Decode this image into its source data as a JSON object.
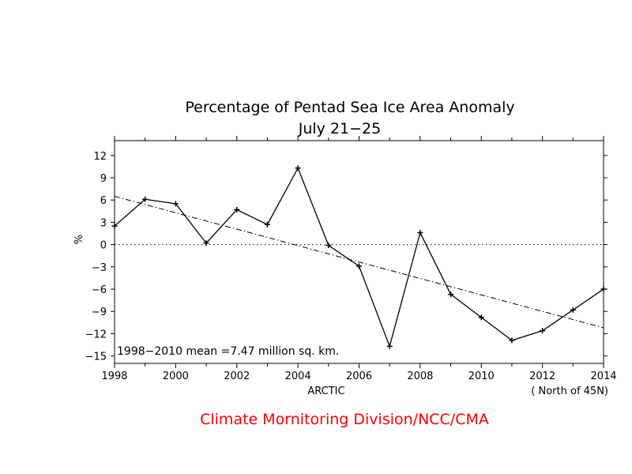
{
  "chart_data": {
    "type": "line",
    "title": "Percentage of Pentad Sea Ice Area Anomaly",
    "subtitle": "July 21−25",
    "ylabel": "%",
    "xlabel": "ARCTIC",
    "region_note": "( North of 45N)",
    "mean_note": "1998−2010  mean =7.47 million sq. km.",
    "credit": "Climate Mornitoring Division/NCC/CMA",
    "credit_color": "#ff0000",
    "xlim": [
      1998,
      2014
    ],
    "ylim": [
      -16,
      14
    ],
    "x_ticks": [
      1998,
      2000,
      2002,
      2004,
      2006,
      2008,
      2010,
      2012,
      2014
    ],
    "y_ticks": [
      12,
      9,
      6,
      3,
      0,
      -3,
      -6,
      -9,
      -12,
      -15
    ],
    "y_tick_labels": [
      "12",
      "9",
      "6",
      "3",
      "0",
      "−3",
      "−6",
      "−9",
      "−12",
      "−15"
    ],
    "zero_line": true,
    "series": [
      {
        "style": "solid-with-plus-markers",
        "x": [
          1998,
          1999,
          2000,
          2001,
          2002,
          2003,
          2004,
          2005,
          2006,
          2007,
          2008,
          2009,
          2010,
          2011,
          2012,
          2013,
          2014
        ],
        "y": [
          2.5,
          6.1,
          5.5,
          0.2,
          4.7,
          2.7,
          10.3,
          -0.1,
          -2.9,
          -13.7,
          1.6,
          -6.7,
          -9.8,
          -12.9,
          -11.6,
          -8.8,
          -6.0
        ]
      },
      {
        "style": "dash-dot-trend",
        "x": [
          1998,
          2014
        ],
        "y": [
          6.5,
          -11.2
        ]
      }
    ]
  }
}
